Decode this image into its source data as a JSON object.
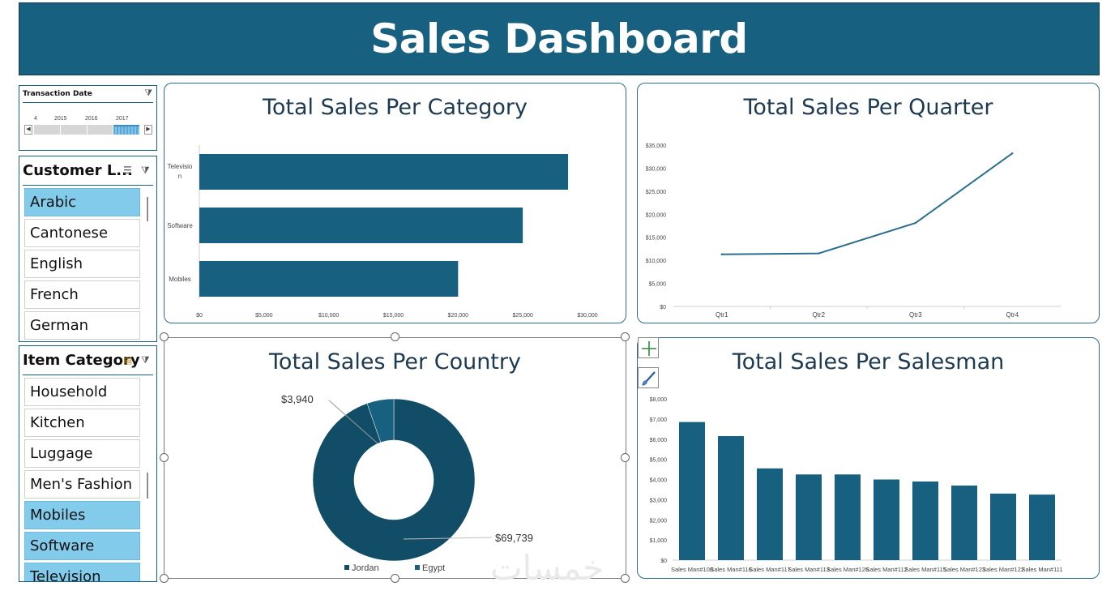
{
  "dashboard": {
    "title": "Sales Dashboard"
  },
  "timeline": {
    "title": "Transaction Date",
    "years": [
      "4",
      "2015",
      "2016",
      "2017"
    ],
    "active_segment": 3
  },
  "customer_slicer": {
    "title": "Customer L...",
    "items": [
      {
        "label": "Arabic",
        "selected": true
      },
      {
        "label": "Cantonese",
        "selected": false
      },
      {
        "label": "English",
        "selected": false
      },
      {
        "label": "French",
        "selected": false
      },
      {
        "label": "German",
        "selected": false
      }
    ]
  },
  "category_slicer": {
    "title": "Item Category",
    "items": [
      {
        "label": "Household",
        "selected": false
      },
      {
        "label": "Kitchen",
        "selected": false
      },
      {
        "label": "Luggage",
        "selected": false
      },
      {
        "label": "Men's Fashion",
        "selected": false
      },
      {
        "label": "Mobiles",
        "selected": true
      },
      {
        "label": "Software",
        "selected": true
      },
      {
        "label": "Television",
        "selected": true
      }
    ]
  },
  "watermark": "خمسات",
  "colors": {
    "brand": "#17607f",
    "bar": "#17607f",
    "donut_dark": "#124d68",
    "selected": "#83cbeb"
  },
  "chart_data": [
    {
      "id": "category",
      "type": "bar",
      "orientation": "horizontal",
      "title": "Total Sales Per Category",
      "category_labels": [
        [
          "Televisio",
          "n"
        ],
        [
          "Software"
        ],
        [
          "Mobiles"
        ]
      ],
      "values": [
        28500,
        25000,
        20000
      ],
      "xlim": [
        0,
        30000
      ],
      "ticks": [
        "$0",
        "$5,000",
        "$10,000",
        "$15,000",
        "$20,000",
        "$25,000",
        "$30,000"
      ]
    },
    {
      "id": "quarter",
      "type": "line",
      "title": "Total Sales Per Quarter",
      "categories": [
        "Qtr1",
        "Qtr2",
        "Qtr3",
        "Qtr4"
      ],
      "values": [
        11300,
        11500,
        18100,
        33200
      ],
      "ylim": [
        0,
        35000
      ],
      "ticks": [
        "$0",
        "$5,000",
        "$10,000",
        "$15,000",
        "$20,000",
        "$25,000",
        "$30,000",
        "$35,000"
      ]
    },
    {
      "id": "country",
      "type": "pie",
      "variant": "donut",
      "title": "Total Sales Per Country",
      "series": [
        {
          "name": "Jordan",
          "value": 69739,
          "label": "$69,739"
        },
        {
          "name": "Egypt",
          "value": 3940,
          "label": "$3,940"
        }
      ],
      "legend": [
        "Jordan",
        "Egypt"
      ]
    },
    {
      "id": "salesman",
      "type": "bar",
      "title": "Total Sales Per Salesman",
      "categories": [
        "Sales Man#108",
        "Sales Man#116",
        "Sales Man#117",
        "Sales Man#113",
        "Sales Man#126",
        "Sales Man#112",
        "Sales Man#115",
        "Sales Man#123",
        "Sales Man#122",
        "Sales Man#111"
      ],
      "tick_labels": [
        "Sales Man#108",
        "Sales Man#116",
        "Sales Man#117",
        "Sales Man#113",
        "Sales Man#126",
        "Sales Man#112",
        "Sales Man#115",
        "Sales Man#123",
        "Sales Man#122",
        "Sales Man#111"
      ],
      "values": [
        6850,
        6150,
        4550,
        4250,
        4250,
        4000,
        3900,
        3700,
        3300,
        3250
      ],
      "ylim": [
        0,
        8000
      ],
      "ticks": [
        "$0",
        "$1,000",
        "$2,000",
        "$3,000",
        "$4,000",
        "$5,000",
        "$6,000",
        "$7,000",
        "$8,000"
      ]
    }
  ]
}
